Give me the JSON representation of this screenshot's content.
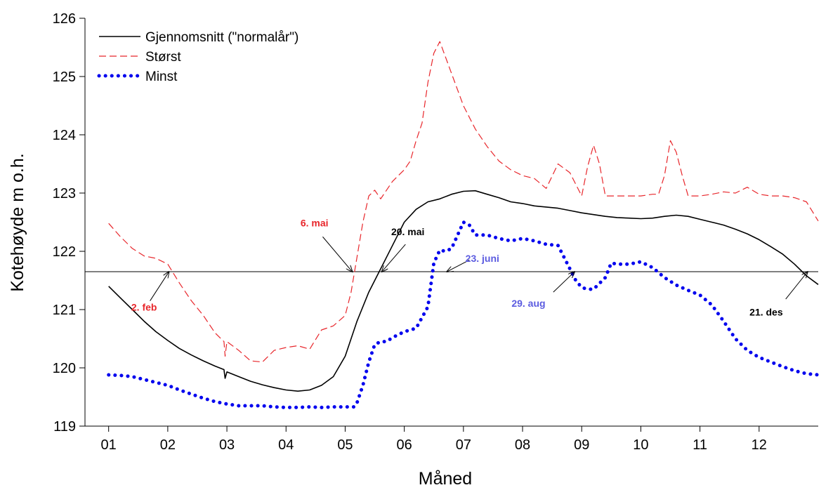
{
  "chart_data": {
    "type": "line",
    "xlabel": "Måned",
    "ylabel": "Kotehøyde m o.h.",
    "xlim": [
      0.6,
      13.0
    ],
    "ylim": [
      119,
      126
    ],
    "categories": [
      "01",
      "02",
      "03",
      "04",
      "05",
      "06",
      "07",
      "08",
      "09",
      "10",
      "11",
      "12"
    ],
    "yticks": [
      119,
      120,
      121,
      122,
      123,
      124,
      125,
      126
    ],
    "grid": false,
    "legend_position": "top-left",
    "reference_level": 121.65,
    "series": [
      {
        "name": "Gjennomsnitt (\"normalår\")",
        "style": "solid",
        "color": "#000000",
        "x": [
          1.0,
          1.2,
          1.4,
          1.6,
          1.8,
          2.0,
          2.2,
          2.4,
          2.6,
          2.8,
          2.95,
          2.97,
          3.0,
          3.2,
          3.4,
          3.6,
          3.8,
          4.0,
          4.2,
          4.4,
          4.6,
          4.8,
          5.0,
          5.2,
          5.4,
          5.6,
          5.8,
          6.0,
          6.2,
          6.4,
          6.6,
          6.8,
          7.0,
          7.2,
          7.4,
          7.6,
          7.8,
          8.0,
          8.2,
          8.4,
          8.6,
          8.8,
          9.0,
          9.2,
          9.4,
          9.6,
          9.8,
          10.0,
          10.2,
          10.4,
          10.6,
          10.8,
          11.0,
          11.2,
          11.4,
          11.6,
          11.8,
          12.0,
          12.2,
          12.4,
          12.6,
          12.8,
          13.0
        ],
        "y": [
          121.4,
          121.2,
          121.0,
          120.8,
          120.62,
          120.47,
          120.33,
          120.22,
          120.12,
          120.03,
          119.97,
          119.82,
          119.93,
          119.85,
          119.77,
          119.71,
          119.66,
          119.62,
          119.6,
          119.62,
          119.7,
          119.85,
          120.2,
          120.8,
          121.3,
          121.7,
          122.1,
          122.5,
          122.72,
          122.85,
          122.9,
          122.98,
          123.03,
          123.04,
          122.98,
          122.92,
          122.85,
          122.82,
          122.78,
          122.76,
          122.74,
          122.7,
          122.66,
          122.63,
          122.6,
          122.58,
          122.57,
          122.56,
          122.57,
          122.6,
          122.62,
          122.6,
          122.55,
          122.5,
          122.45,
          122.38,
          122.3,
          122.2,
          122.08,
          121.95,
          121.78,
          121.58,
          121.43
        ]
      },
      {
        "name": "Størst",
        "style": "dashed",
        "color": "#e8262b",
        "x": [
          1.0,
          1.2,
          1.4,
          1.6,
          1.8,
          2.0,
          2.2,
          2.4,
          2.6,
          2.8,
          2.9,
          2.95,
          2.97,
          3.0,
          3.2,
          3.4,
          3.6,
          3.8,
          4.0,
          4.2,
          4.4,
          4.6,
          4.8,
          5.0,
          5.1,
          5.2,
          5.3,
          5.4,
          5.5,
          5.6,
          5.8,
          6.0,
          6.1,
          6.2,
          6.3,
          6.4,
          6.5,
          6.6,
          6.8,
          7.0,
          7.2,
          7.4,
          7.6,
          7.8,
          8.0,
          8.2,
          8.4,
          8.6,
          8.8,
          9.0,
          9.1,
          9.2,
          9.3,
          9.4,
          9.6,
          9.8,
          10.0,
          10.2,
          10.3,
          10.4,
          10.5,
          10.6,
          10.7,
          10.8,
          11.0,
          11.2,
          11.4,
          11.6,
          11.8,
          12.0,
          12.2,
          12.4,
          12.6,
          12.8,
          13.0
        ],
        "y": [
          122.48,
          122.25,
          122.05,
          121.92,
          121.88,
          121.78,
          121.45,
          121.15,
          120.9,
          120.6,
          120.5,
          120.45,
          120.2,
          120.45,
          120.3,
          120.12,
          120.1,
          120.3,
          120.35,
          120.38,
          120.32,
          120.65,
          120.72,
          120.9,
          121.3,
          121.9,
          122.5,
          122.95,
          123.05,
          122.9,
          123.2,
          123.4,
          123.55,
          123.9,
          124.2,
          124.9,
          125.4,
          125.6,
          125.05,
          124.5,
          124.1,
          123.8,
          123.55,
          123.4,
          123.3,
          123.25,
          123.08,
          123.5,
          123.35,
          122.95,
          123.45,
          123.82,
          123.5,
          122.95,
          122.95,
          122.95,
          122.95,
          122.98,
          122.98,
          123.3,
          123.9,
          123.7,
          123.3,
          122.95,
          122.95,
          122.98,
          123.02,
          123.0,
          123.1,
          122.98,
          122.95,
          122.95,
          122.92,
          122.85,
          122.52
        ]
      },
      {
        "name": "Minst",
        "style": "dotted",
        "color": "#0000ee",
        "x": [
          1.0,
          1.2,
          1.4,
          1.6,
          1.8,
          2.0,
          2.2,
          2.4,
          2.6,
          2.8,
          3.0,
          3.2,
          3.4,
          3.6,
          3.8,
          4.0,
          4.2,
          4.4,
          4.6,
          4.8,
          5.0,
          5.15,
          5.2,
          5.3,
          5.4,
          5.5,
          5.6,
          5.7,
          5.8,
          6.0,
          6.2,
          6.4,
          6.5,
          6.6,
          6.7,
          6.8,
          7.0,
          7.1,
          7.2,
          7.4,
          7.6,
          7.8,
          8.0,
          8.2,
          8.4,
          8.6,
          8.7,
          8.8,
          8.9,
          9.0,
          9.1,
          9.2,
          9.4,
          9.5,
          9.6,
          9.7,
          9.8,
          10.0,
          10.2,
          10.4,
          10.6,
          10.8,
          11.0,
          11.2,
          11.4,
          11.6,
          11.8,
          12.0,
          12.2,
          12.4,
          12.6,
          12.8,
          13.0
        ],
        "y": [
          119.88,
          119.87,
          119.85,
          119.8,
          119.75,
          119.7,
          119.62,
          119.55,
          119.48,
          119.42,
          119.38,
          119.35,
          119.35,
          119.35,
          119.33,
          119.32,
          119.32,
          119.33,
          119.32,
          119.33,
          119.33,
          119.33,
          119.4,
          119.7,
          120.1,
          120.4,
          120.45,
          120.45,
          120.52,
          120.62,
          120.68,
          121.05,
          121.8,
          122.02,
          122.0,
          122.05,
          122.5,
          122.45,
          122.28,
          122.28,
          122.22,
          122.18,
          122.22,
          122.18,
          122.12,
          122.1,
          121.9,
          121.7,
          121.5,
          121.38,
          121.35,
          121.35,
          121.55,
          121.8,
          121.78,
          121.78,
          121.78,
          121.82,
          121.72,
          121.55,
          121.42,
          121.33,
          121.25,
          121.08,
          120.8,
          120.5,
          120.3,
          120.18,
          120.1,
          120.02,
          119.95,
          119.9,
          119.88
        ]
      }
    ],
    "annotations": [
      {
        "text": "2. feb",
        "color": "#e8262b",
        "point": [
          2.02,
          121.65
        ],
        "label_at": [
          1.6,
          120.98
        ],
        "arrow_tail": [
          1.7,
          121.15
        ]
      },
      {
        "text": "6. mai",
        "color": "#e8262b",
        "point": [
          5.12,
          121.65
        ],
        "label_at": [
          4.48,
          122.43
        ],
        "arrow_tail": [
          4.62,
          122.25
        ]
      },
      {
        "text": "20. mai",
        "color": "#000000",
        "point": [
          5.62,
          121.65
        ],
        "label_at": [
          6.06,
          122.28
        ],
        "arrow_tail": [
          6.02,
          122.12
        ]
      },
      {
        "text": "23. juni",
        "color": "#5b5be0",
        "point": [
          6.72,
          121.65
        ],
        "label_at": [
          7.32,
          121.82
        ],
        "arrow_tail": [
          7.1,
          121.85
        ]
      },
      {
        "text": "29. aug",
        "color": "#5b5be0",
        "point": [
          8.88,
          121.65
        ],
        "label_at": [
          8.1,
          121.05
        ],
        "arrow_tail": [
          8.52,
          121.3
        ]
      },
      {
        "text": "21. des",
        "color": "#000000",
        "point": [
          12.82,
          121.65
        ],
        "label_at": [
          12.12,
          120.9
        ],
        "arrow_tail": [
          12.45,
          121.18
        ]
      }
    ]
  }
}
